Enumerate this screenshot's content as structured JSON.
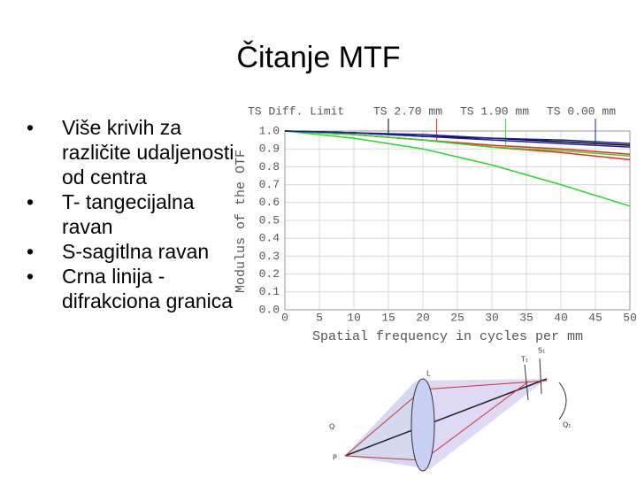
{
  "title": "Čitanje MTF",
  "bullets": [
    "Više krivih za različite udaljenosti od centra",
    "T- tangecijalna ravan",
    "S-sagitlna ravan",
    "Crna linija - difrakciona granica"
  ],
  "chart_data": {
    "type": "line",
    "x_label": "Spatial frequency in cycles per mm",
    "y_label": "Modulus of the OTF",
    "x": [
      0,
      10,
      20,
      30,
      40,
      50
    ],
    "series": [
      {
        "name": "TS Diff. Limit",
        "color": "#000000",
        "values": [
          1,
          0.99,
          0.97,
          0.96,
          0.94,
          0.92
        ]
      },
      {
        "name": "TS 2.70 mm",
        "color": "#ff2020",
        "values": [
          1,
          0.98,
          0.95,
          0.92,
          0.9,
          0.87
        ],
        "values_s": [
          1,
          0.98,
          0.95,
          0.91,
          0.88,
          0.84
        ]
      },
      {
        "name": "TS 1.90 mm",
        "color": "#22dd22",
        "values": [
          1,
          0.96,
          0.9,
          0.81,
          0.7,
          0.58
        ],
        "values_s": [
          1,
          0.98,
          0.95,
          0.91,
          0.89,
          0.86
        ]
      },
      {
        "name": "TS 0.00 mm",
        "color": "#1a1aa0",
        "values": [
          1,
          0.99,
          0.98,
          0.96,
          0.95,
          0.93
        ],
        "values_s": [
          1,
          0.99,
          0.97,
          0.95,
          0.93,
          0.91
        ]
      }
    ],
    "xlim": [
      0,
      50
    ],
    "ylim": [
      0,
      1
    ],
    "xticks": [
      0,
      5,
      10,
      15,
      20,
      25,
      30,
      35,
      40,
      45,
      50
    ],
    "yticks": [
      {
        "value": 0,
        "label": "0.0"
      },
      {
        "value": 0.1,
        "label": "0.1"
      },
      {
        "value": 0.2,
        "label": "0.2"
      },
      {
        "value": 0.3,
        "label": "0.3"
      },
      {
        "value": 0.4,
        "label": "0.4"
      },
      {
        "value": 0.5,
        "label": "0.5"
      },
      {
        "value": 0.6,
        "label": "0.6"
      },
      {
        "value": 0.7,
        "label": "0.7"
      },
      {
        "value": 0.8,
        "label": "0.8"
      },
      {
        "value": 0.9,
        "label": "0.9"
      },
      {
        "value": 1,
        "label": "1.0"
      }
    ],
    "grid": true
  },
  "diagram": {
    "labels": [
      "L",
      "T₁",
      "S₁",
      "Q",
      "Q₁",
      "P"
    ]
  }
}
